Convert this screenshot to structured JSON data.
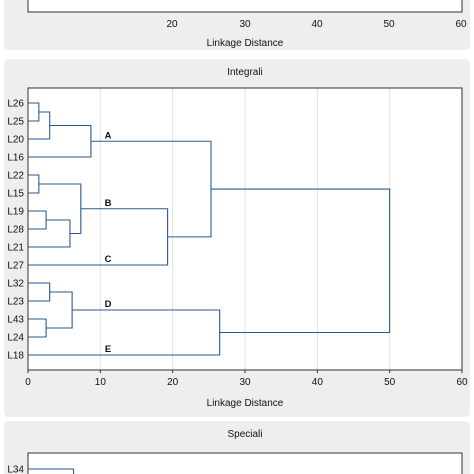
{
  "colors": {
    "panel_bg": "#eeeeee",
    "plot_bg": "#ffffff",
    "link": "#2a5a93",
    "grid": "#e2e2e2",
    "axis": "#333333"
  },
  "chart_data": [
    {
      "type": "dendrogram",
      "title": "",
      "xlabel": "Linkage Distance",
      "xlim": [
        0,
        60
      ],
      "x_ticks": [
        20,
        30,
        40,
        50,
        60
      ],
      "leaves": [],
      "merges": [],
      "group_labels": [],
      "partial": "top"
    },
    {
      "type": "dendrogram",
      "title": "Integrali",
      "xlabel": "Linkage Distance",
      "xlim": [
        0,
        60
      ],
      "x_ticks": [
        0,
        10,
        20,
        30,
        40,
        50,
        60
      ],
      "grid": true,
      "leaves": [
        "L26",
        "L25",
        "L20",
        "L16",
        "L22",
        "L15",
        "L19",
        "L28",
        "L21",
        "L27",
        "L32",
        "L23",
        "L43",
        "L24",
        "L18"
      ],
      "merges": [
        {
          "a": "L26",
          "b": "L25",
          "dist": 1.5,
          "id": "m1"
        },
        {
          "a": "m1",
          "b": "L20",
          "dist": 3.0,
          "id": "m2"
        },
        {
          "a": "m2",
          "b": "L16",
          "dist": 8.7,
          "id": "m3"
        },
        {
          "a": "L22",
          "b": "L15",
          "dist": 1.5,
          "id": "m4"
        },
        {
          "a": "L19",
          "b": "L28",
          "dist": 2.5,
          "id": "m5"
        },
        {
          "a": "m5",
          "b": "L21",
          "dist": 5.8,
          "id": "m6"
        },
        {
          "a": "m4",
          "b": "m6",
          "dist": 7.3,
          "id": "m7"
        },
        {
          "a": "m7",
          "b": "L27",
          "dist": 19.3,
          "id": "m8"
        },
        {
          "a": "m3",
          "b": "m8",
          "dist": 25.3,
          "id": "m9"
        },
        {
          "a": "L32",
          "b": "L23",
          "dist": 3.0,
          "id": "m10"
        },
        {
          "a": "L43",
          "b": "L24",
          "dist": 2.5,
          "id": "m11"
        },
        {
          "a": "m10",
          "b": "m11",
          "dist": 6.1,
          "id": "m12"
        },
        {
          "a": "m12",
          "b": "L18",
          "dist": 26.5,
          "id": "m13"
        },
        {
          "a": "m9",
          "b": "m13",
          "dist": 50.0,
          "id": "m14"
        }
      ],
      "group_labels": [
        {
          "label": "A",
          "node": "m3"
        },
        {
          "label": "B",
          "node": "m7"
        },
        {
          "label": "C",
          "leaf": "L27"
        },
        {
          "label": "D",
          "node": "m12"
        },
        {
          "label": "E",
          "leaf": "L18"
        }
      ]
    },
    {
      "type": "dendrogram",
      "title": "Speciali",
      "xlabel": "",
      "xlim": [
        0,
        60
      ],
      "leaves": [
        "L34"
      ],
      "merges": [],
      "first_link_end": 6.3,
      "partial": "bottom"
    }
  ]
}
